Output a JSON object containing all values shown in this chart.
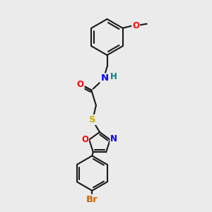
{
  "bg_color": "#ebebeb",
  "bond_color": "#1a1a1a",
  "bond_width": 1.5,
  "atom_colors": {
    "N": "#0000ff",
    "H": "#008080",
    "O": "#ff0000",
    "S": "#ccaa00",
    "Br": "#cc6600",
    "C": "#1a1a1a"
  },
  "font_size": 8.5
}
